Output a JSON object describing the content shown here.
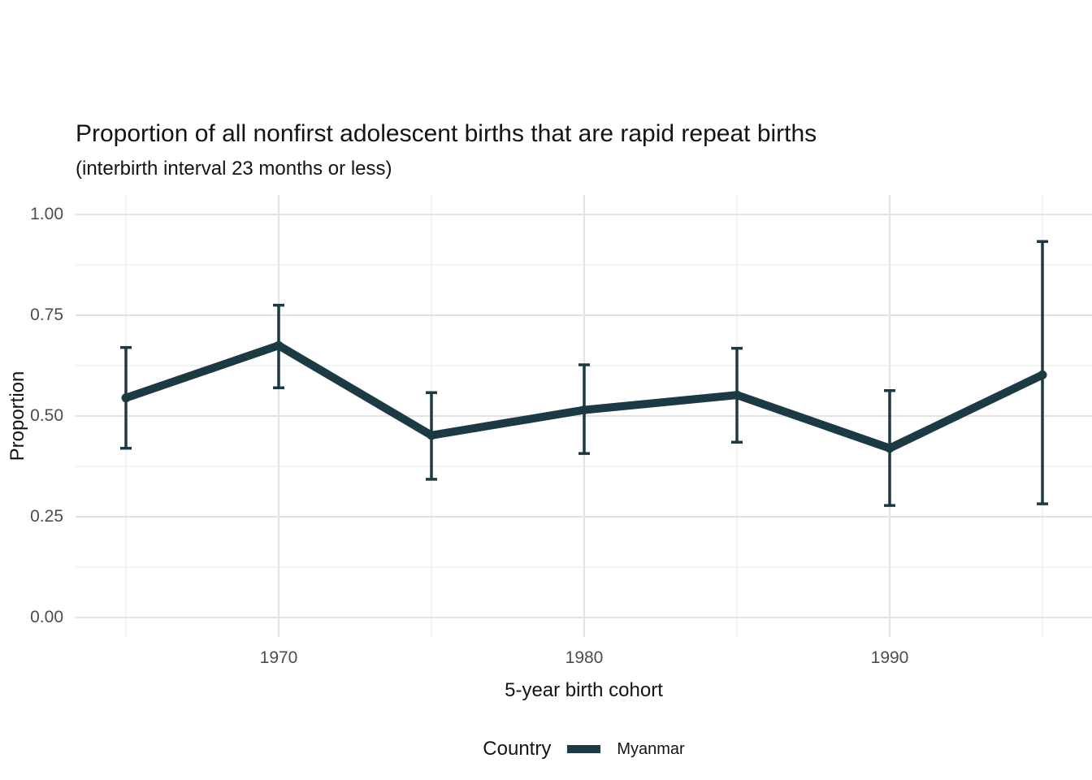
{
  "chart_data": {
    "type": "line",
    "title": "Proportion of all nonfirst adolescent births that are rapid repeat births",
    "subtitle": "(interbirth interval 23 months or less)",
    "xlabel": "5-year birth cohort",
    "ylabel": "Proportion",
    "legend": {
      "title": "Country",
      "position": "bottom",
      "entries": [
        {
          "label": "Myanmar",
          "color": "#1B3A43"
        }
      ]
    },
    "x": [
      1965,
      1970,
      1975,
      1980,
      1985,
      1990,
      1995
    ],
    "series": [
      {
        "name": "Myanmar",
        "values": [
          0.545,
          0.675,
          0.452,
          0.515,
          0.552,
          0.42,
          0.602
        ],
        "ci_low": [
          0.42,
          0.57,
          0.343,
          0.407,
          0.435,
          0.278,
          0.282
        ],
        "ci_high": [
          0.67,
          0.775,
          0.558,
          0.627,
          0.668,
          0.563,
          0.933
        ]
      }
    ],
    "x_ticks": {
      "breaks": [
        1970,
        1980,
        1990
      ],
      "labels": [
        "1970",
        "1980",
        "1990"
      ],
      "minor_breaks": [
        1965,
        1975,
        1985,
        1995
      ]
    },
    "y_ticks": {
      "breaks": [
        0,
        0.25,
        0.5,
        0.75,
        1.0
      ],
      "labels": [
        "0.00",
        "0.25",
        "0.50",
        "0.75",
        "1.00"
      ],
      "minor_breaks": [
        0.125,
        0.375,
        0.625,
        0.875
      ]
    },
    "xlim": [
      1963.5,
      1996.5
    ],
    "ylim": [
      -0.05,
      1.05
    ],
    "grid": true,
    "colors": {
      "line": "#1B3A43",
      "grid_major": "#E3E3E3",
      "grid_minor": "#EFEFEF",
      "tick_text": "#4D4D4D",
      "title_text": "#141414",
      "background": "#FFFFFF"
    }
  }
}
